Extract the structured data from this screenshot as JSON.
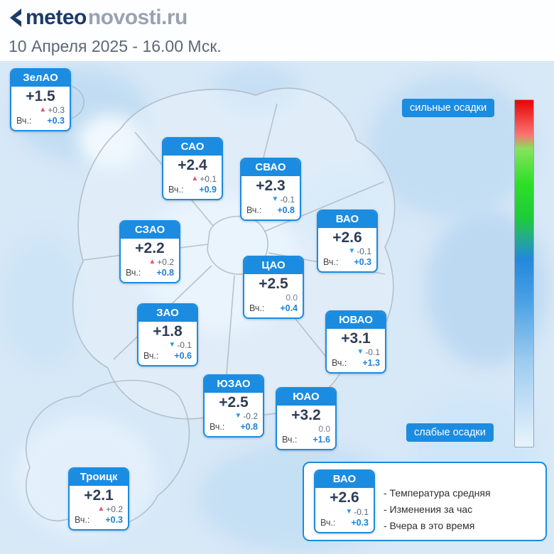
{
  "header": {
    "logo_bold": "meteo",
    "logo_gray": "novosti.ru",
    "date": "10 Апреля 2025 - 16.00 Мск."
  },
  "labels": {
    "vch": "Вч.:",
    "strong_precip": "сильные осадки",
    "weak_precip": "слабые осадки"
  },
  "cards": [
    {
      "district": "ЗелАО",
      "temp": "+1.5",
      "dir": "up",
      "delta": "+0.3",
      "vch": "+0.3"
    },
    {
      "district": "САО",
      "temp": "+2.4",
      "dir": "up",
      "delta": "+0.1",
      "vch": "+0.9"
    },
    {
      "district": "СВАО",
      "temp": "+2.3",
      "dir": "down",
      "delta": "-0.1",
      "vch": "+0.8"
    },
    {
      "district": "ВАО",
      "temp": "+2.6",
      "dir": "down",
      "delta": "-0.1",
      "vch": "+0.3"
    },
    {
      "district": "СЗАО",
      "temp": "+2.2",
      "dir": "up",
      "delta": "+0.2",
      "vch": "+0.8"
    },
    {
      "district": "ЦАО",
      "temp": "+2.5",
      "dir": "none",
      "delta": "0.0",
      "vch": "+0.4"
    },
    {
      "district": "ЗАО",
      "temp": "+1.8",
      "dir": "down",
      "delta": "-0.1",
      "vch": "+0.6"
    },
    {
      "district": "ЮВАО",
      "temp": "+3.1",
      "dir": "down",
      "delta": "-0.1",
      "vch": "+1.3"
    },
    {
      "district": "ЮЗАО",
      "temp": "+2.5",
      "dir": "down",
      "delta": "-0.2",
      "vch": "+0.8"
    },
    {
      "district": "ЮАО",
      "temp": "+3.2",
      "dir": "none",
      "delta": "0.0",
      "vch": "+1.6"
    },
    {
      "district": "Троицк",
      "temp": "+2.1",
      "dir": "up",
      "delta": "+0.2",
      "vch": "+0.3"
    }
  ],
  "legend_card": {
    "district": "ВАО",
    "temp": "+2.6",
    "arrow": "▼",
    "delta": "-0.1",
    "vch": "+0.3",
    "lines": [
      "- Температура средняя",
      "- Изменения за час",
      "- Вчера в это время"
    ]
  },
  "colors": {
    "accent_blue": "#1b8ce0",
    "up_red": "#e4556e",
    "down_blue": "#2e9be6"
  }
}
